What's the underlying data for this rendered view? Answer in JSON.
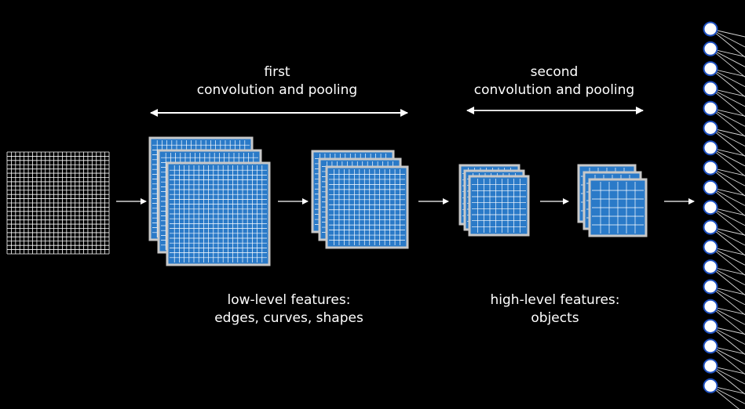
{
  "colors": {
    "background": "#000000",
    "feature_map_fill": "#2a7ac8",
    "feature_map_frame": "#c8c8c8",
    "grid_lines": "#ffffff",
    "node_fill": "#ffffff",
    "node_stroke": "#1e50c0",
    "text": "#ffffff"
  },
  "labels": {
    "first_stage": {
      "line1": "first",
      "line2": "convolution and pooling"
    },
    "second_stage": {
      "line1": "second",
      "line2": "convolution and pooling"
    },
    "low_level": {
      "line1": "low-level features:",
      "line2": "edges, curves, shapes"
    },
    "high_level": {
      "line1": "high-level features:",
      "line2": "objects"
    }
  },
  "icons": {
    "input_image": "grid-icon",
    "feature_maps": "stacked-grid-icon",
    "flow_arrows": "right-arrow-icon",
    "stage_spans": "double-arrow-icon",
    "output_layer": "neuron-node-icon"
  },
  "output_layer": {
    "node_count": 19
  }
}
